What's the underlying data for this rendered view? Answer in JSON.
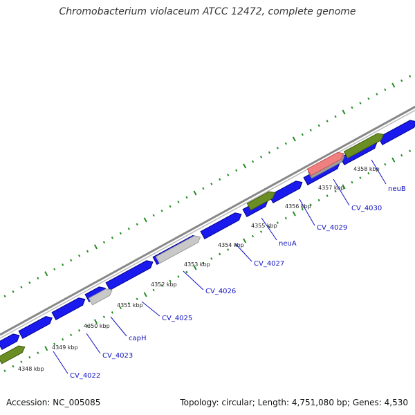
{
  "title": "Chromobacterium violaceum ATCC 12472, complete genome",
  "footer": {
    "accession": "Accession: NC_005085",
    "summary": "Topology: circular; Length: 4,751,080 bp; Genes: 4,530"
  },
  "colors": {
    "cds": "#1a1aee",
    "cds_dark": "#000088",
    "gene_green": "#6a8e23",
    "gene_gray": "#c8c8c8",
    "rrna_pink": "#f08080",
    "backbone": "#888888",
    "tick": "#228b22",
    "label": "#1010c0"
  },
  "kbp_labels": [
    "4348 kbp",
    "4349 kbp",
    "4350 kbp",
    "4351 kbp",
    "4352 kbp",
    "4353 kbp",
    "4354 kbp",
    "4355 kbp",
    "4356 kbp",
    "4357 kbp",
    "4358 kbp"
  ],
  "gene_labels": [
    "CV_4022",
    "CV_4023",
    "capH",
    "CV_4025",
    "CV_4026",
    "CV_4027",
    "neuA",
    "CV_4029",
    "CV_4030",
    "neuB"
  ]
}
